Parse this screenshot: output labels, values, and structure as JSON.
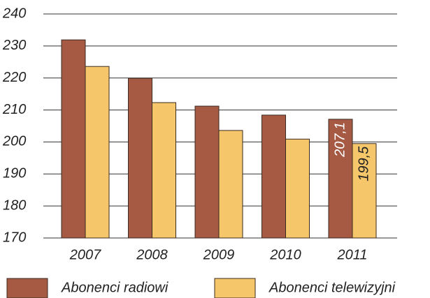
{
  "chart_data": {
    "type": "bar",
    "categories": [
      "2007",
      "2008",
      "2009",
      "2010",
      "2011"
    ],
    "series": [
      {
        "name": "Abonenci radiowi",
        "color": "#a65a44",
        "values": [
          231.9,
          219.9,
          211.2,
          208.4,
          207.1
        ],
        "value_labels": [
          null,
          null,
          null,
          null,
          "207,1"
        ]
      },
      {
        "name": "Abonenci telewizyjni",
        "color": "#f5c66a",
        "values": [
          223.6,
          212.3,
          203.6,
          200.9,
          199.5
        ],
        "value_labels": [
          null,
          null,
          null,
          null,
          "199,5"
        ]
      }
    ],
    "ylim": [
      170,
      240
    ],
    "yticks": [
      170,
      180,
      190,
      200,
      210,
      220,
      230,
      240
    ],
    "grid": true,
    "legend": "bottom"
  }
}
